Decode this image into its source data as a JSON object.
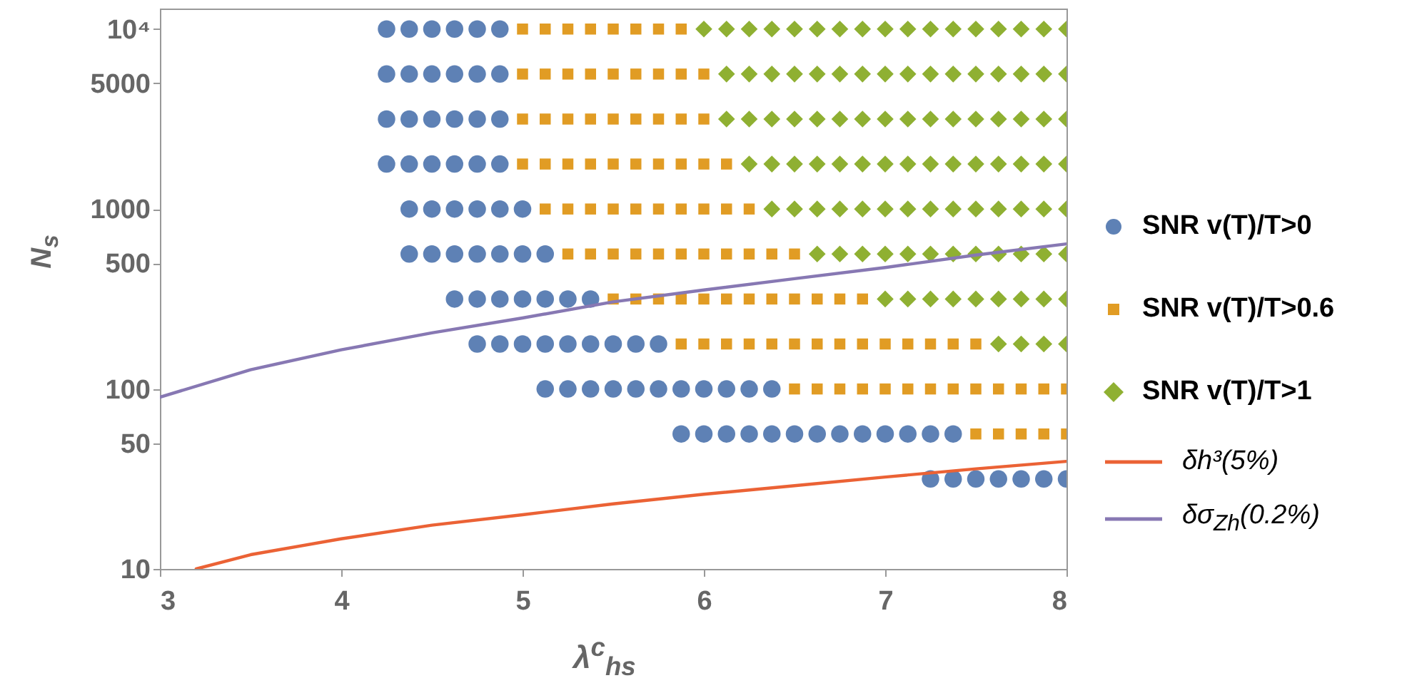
{
  "chart_data": {
    "type": "scatter",
    "xlabel": "λ$^{c}$$_{hs}$",
    "ylabel": "N$_{s}$",
    "xlim": [
      3,
      8
    ],
    "xticks": [
      3,
      4,
      5,
      6,
      7,
      8
    ],
    "ylim": [
      10,
      13000
    ],
    "yticks": [
      10,
      50,
      100,
      500,
      1000,
      5000,
      {
        "value": 10000,
        "label": "10⁴"
      }
    ],
    "log": "y",
    "legend": "right",
    "series": [
      {
        "name": "SNR v(T)/T>0",
        "color": "#5e81b5",
        "marker": "circle",
        "x": [
          4.25,
          4.375,
          4.5,
          4.625,
          4.75,
          4.875,
          4.25,
          4.375,
          4.5,
          4.625,
          4.75,
          4.875,
          4.25,
          4.375,
          4.5,
          4.625,
          4.75,
          4.875,
          4.25,
          4.375,
          4.5,
          4.625,
          4.75,
          4.875,
          4.375,
          4.5,
          4.625,
          4.75,
          4.875,
          5,
          4.375,
          4.5,
          4.625,
          4.75,
          4.875,
          5,
          5.125,
          4.625,
          4.75,
          4.875,
          5,
          5.125,
          5.25,
          5.375,
          4.75,
          4.875,
          5,
          5.125,
          5.25,
          5.375,
          5.5,
          5.625,
          5.75,
          5.125,
          5.25,
          5.375,
          5.5,
          5.625,
          5.75,
          5.875,
          6,
          6.125,
          6.25,
          6.375,
          5.875,
          6,
          6.125,
          6.25,
          6.375,
          6.5,
          6.625,
          6.75,
          6.875,
          7,
          7.125,
          7.25,
          7.375,
          7.25,
          7.375,
          7.5,
          7.625,
          7.75,
          7.875,
          8
        ],
        "values": [
          10000,
          10000,
          10000,
          10000,
          10000,
          10000,
          5623,
          5623,
          5623,
          5623,
          5623,
          5623,
          3162,
          3162,
          3162,
          3162,
          3162,
          3162,
          1778,
          1778,
          1778,
          1778,
          1778,
          1778,
          1000,
          1000,
          1000,
          1000,
          1000,
          1000,
          562.3,
          562.3,
          562.3,
          562.3,
          562.3,
          562.3,
          562.3,
          316.2,
          316.2,
          316.2,
          316.2,
          316.2,
          316.2,
          316.2,
          177.8,
          177.8,
          177.8,
          177.8,
          177.8,
          177.8,
          177.8,
          177.8,
          177.8,
          100,
          100,
          100,
          100,
          100,
          100,
          100,
          100,
          100,
          100,
          100,
          56.23,
          56.23,
          56.23,
          56.23,
          56.23,
          56.23,
          56.23,
          56.23,
          56.23,
          56.23,
          56.23,
          56.23,
          56.23,
          31.62,
          31.62,
          31.62,
          31.62,
          31.62,
          31.62,
          31.62
        ]
      },
      {
        "name": "SNR v(T)/T>0.6",
        "color": "#e19c24",
        "marker": "square",
        "x": [
          5,
          5.125,
          5.25,
          5.375,
          5.5,
          5.625,
          5.75,
          5.875,
          5,
          5.125,
          5.25,
          5.375,
          5.5,
          5.625,
          5.75,
          5.875,
          6,
          5,
          5.125,
          5.25,
          5.375,
          5.5,
          5.625,
          5.75,
          5.875,
          6,
          5,
          5.125,
          5.25,
          5.375,
          5.5,
          5.625,
          5.75,
          5.875,
          6,
          6.125,
          5.125,
          5.25,
          5.375,
          5.5,
          5.625,
          5.75,
          5.875,
          6,
          6.125,
          6.25,
          5.25,
          5.375,
          5.5,
          5.625,
          5.75,
          5.875,
          6,
          6.125,
          6.25,
          6.375,
          6.5,
          5.5,
          5.625,
          5.75,
          5.875,
          6,
          6.125,
          6.25,
          6.375,
          6.5,
          6.625,
          6.75,
          6.875,
          5.875,
          6,
          6.125,
          6.25,
          6.375,
          6.5,
          6.625,
          6.75,
          6.875,
          7,
          7.125,
          7.25,
          7.375,
          7.5,
          6.5,
          6.625,
          6.75,
          6.875,
          7,
          7.125,
          7.25,
          7.375,
          7.5,
          7.625,
          7.75,
          7.875,
          8,
          7.5,
          7.625,
          7.75,
          7.875,
          8
        ],
        "values": [
          10000,
          10000,
          10000,
          10000,
          10000,
          10000,
          10000,
          10000,
          5623,
          5623,
          5623,
          5623,
          5623,
          5623,
          5623,
          5623,
          5623,
          3162,
          3162,
          3162,
          3162,
          3162,
          3162,
          3162,
          3162,
          3162,
          1778,
          1778,
          1778,
          1778,
          1778,
          1778,
          1778,
          1778,
          1778,
          1778,
          1000,
          1000,
          1000,
          1000,
          1000,
          1000,
          1000,
          1000,
          1000,
          1000,
          562.3,
          562.3,
          562.3,
          562.3,
          562.3,
          562.3,
          562.3,
          562.3,
          562.3,
          562.3,
          562.3,
          316.2,
          316.2,
          316.2,
          316.2,
          316.2,
          316.2,
          316.2,
          316.2,
          316.2,
          316.2,
          316.2,
          316.2,
          177.8,
          177.8,
          177.8,
          177.8,
          177.8,
          177.8,
          177.8,
          177.8,
          177.8,
          177.8,
          177.8,
          177.8,
          177.8,
          177.8,
          100,
          100,
          100,
          100,
          100,
          100,
          100,
          100,
          100,
          100,
          100,
          100,
          100,
          56.23,
          56.23,
          56.23,
          56.23,
          56.23
        ]
      },
      {
        "name": "SNR v(T)/T>1",
        "color": "#8fb032",
        "marker": "diamond",
        "x": [
          6,
          6.125,
          6.25,
          6.375,
          6.5,
          6.625,
          6.75,
          6.875,
          7,
          7.125,
          7.25,
          7.375,
          7.5,
          7.625,
          7.75,
          7.875,
          8,
          6.125,
          6.25,
          6.375,
          6.5,
          6.625,
          6.75,
          6.875,
          7,
          7.125,
          7.25,
          7.375,
          7.5,
          7.625,
          7.75,
          7.875,
          8,
          6.125,
          6.25,
          6.375,
          6.5,
          6.625,
          6.75,
          6.875,
          7,
          7.125,
          7.25,
          7.375,
          7.5,
          7.625,
          7.75,
          7.875,
          8,
          6.25,
          6.375,
          6.5,
          6.625,
          6.75,
          6.875,
          7,
          7.125,
          7.25,
          7.375,
          7.5,
          7.625,
          7.75,
          7.875,
          8,
          6.375,
          6.5,
          6.625,
          6.75,
          6.875,
          7,
          7.125,
          7.25,
          7.375,
          7.5,
          7.625,
          7.75,
          7.875,
          8,
          6.625,
          6.75,
          6.875,
          7,
          7.125,
          7.25,
          7.375,
          7.5,
          7.625,
          7.75,
          7.875,
          8,
          7,
          7.125,
          7.25,
          7.375,
          7.5,
          7.625,
          7.75,
          7.875,
          8,
          7.625,
          7.75,
          7.875,
          8
        ],
        "values": [
          10000,
          10000,
          10000,
          10000,
          10000,
          10000,
          10000,
          10000,
          10000,
          10000,
          10000,
          10000,
          10000,
          10000,
          10000,
          10000,
          10000,
          5623,
          5623,
          5623,
          5623,
          5623,
          5623,
          5623,
          5623,
          5623,
          5623,
          5623,
          5623,
          5623,
          5623,
          5623,
          5623,
          3162,
          3162,
          3162,
          3162,
          3162,
          3162,
          3162,
          3162,
          3162,
          3162,
          3162,
          3162,
          3162,
          3162,
          3162,
          3162,
          1778,
          1778,
          1778,
          1778,
          1778,
          1778,
          1778,
          1778,
          1778,
          1778,
          1778,
          1778,
          1778,
          1778,
          1778,
          1000,
          1000,
          1000,
          1000,
          1000,
          1000,
          1000,
          1000,
          1000,
          1000,
          1000,
          1000,
          1000,
          1000,
          562.3,
          562.3,
          562.3,
          562.3,
          562.3,
          562.3,
          562.3,
          562.3,
          562.3,
          562.3,
          562.3,
          562.3,
          316.2,
          316.2,
          316.2,
          316.2,
          316.2,
          316.2,
          316.2,
          316.2,
          316.2,
          177.8,
          177.8,
          177.8,
          177.8
        ]
      },
      {
        "name": "δh³(5%)",
        "type": "line",
        "color": "#eb6235",
        "marker": "none",
        "x": [
          3.2,
          3.5,
          4,
          4.5,
          5,
          5.5,
          6,
          6.5,
          7,
          7.5,
          8
        ],
        "values": [
          10,
          12,
          14.7,
          17.5,
          20,
          23,
          26,
          29,
          32.4,
          36,
          39.6
        ]
      },
      {
        "name": "δσ$_{Zh}$(0.2%)",
        "type": "line",
        "color": "#8778b3",
        "marker": "none",
        "x": [
          3,
          3.5,
          4,
          4.5,
          5,
          5.5,
          6,
          6.5,
          7,
          7.5,
          8
        ],
        "values": [
          90,
          128,
          165,
          205,
          248,
          305,
          355,
          410,
          473,
          555,
          640
        ]
      }
    ]
  }
}
